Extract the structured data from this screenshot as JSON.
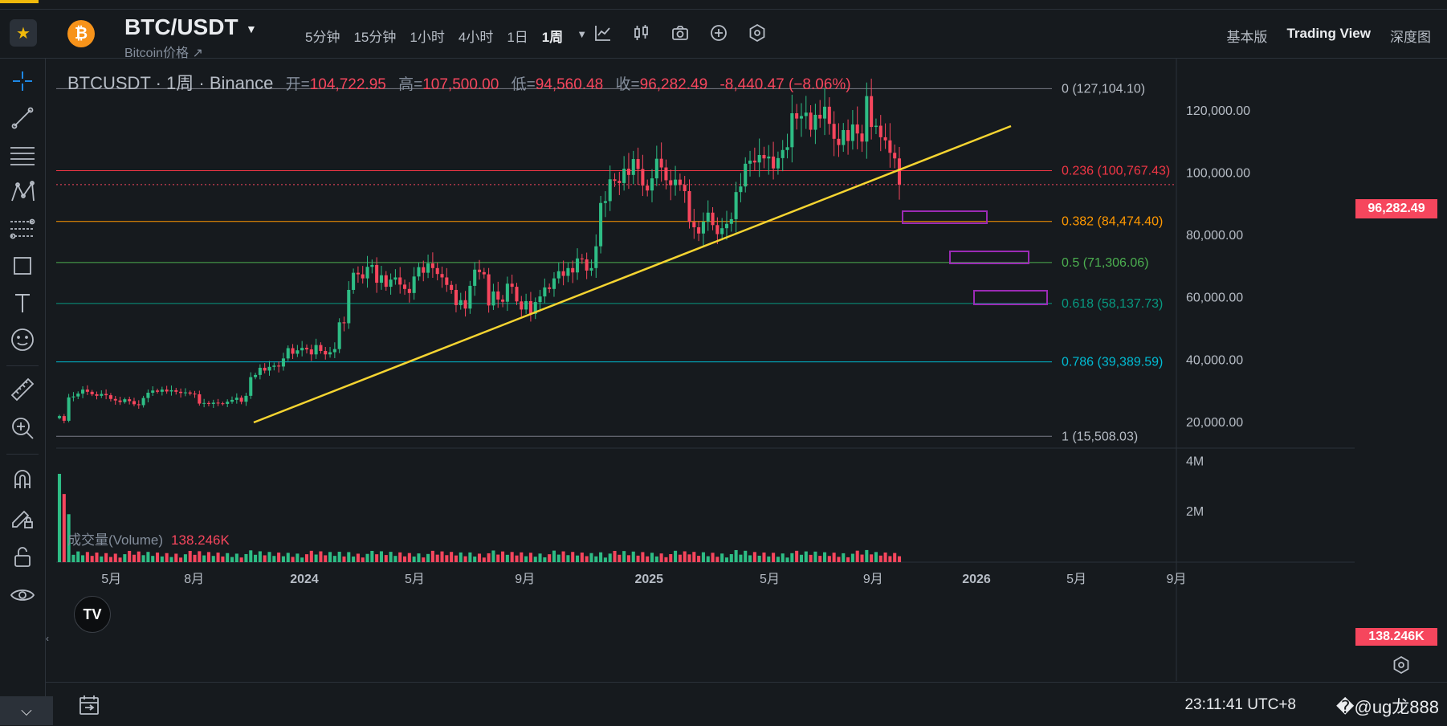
{
  "header": {
    "coin_symbol": "₿",
    "pair": "BTC/USDT",
    "subtitle": "Bitcoin价格 ↗",
    "intervals": [
      "5分钟",
      "15分钟",
      "1小时",
      "4小时",
      "1日",
      "1周"
    ],
    "active_interval": "1周",
    "views": [
      "基本版",
      "Trading View",
      "深度图"
    ],
    "active_view": "Trading View",
    "icons": [
      "chart-line-icon",
      "candles-icon",
      "camera-icon",
      "plus-circle-icon",
      "settings-hex-icon"
    ]
  },
  "legend": {
    "symbol": "BTCUSDT · 1周 · Binance",
    "open_label": "开=",
    "open": "104,722.95",
    "high_label": "高=",
    "high": "107,500.00",
    "low_label": "低=",
    "low": "94,560.48",
    "close_label": "收=",
    "close": "96,282.49",
    "change": "-8,440.47 (−8.06%)"
  },
  "volume_legend": {
    "label": "成交量(Volume)",
    "value": "138.246K"
  },
  "price_tag": "96,282.49",
  "volume_tag": "138.246K",
  "chart_data": {
    "type": "candlestick",
    "price_axis": {
      "ticks": [
        "120,000.00",
        "100,000.00",
        "80,000.00",
        "60,000.00",
        "40,000.00",
        "20,000.00"
      ],
      "values": [
        120000,
        100000,
        80000,
        60000,
        40000,
        20000
      ]
    },
    "volume_axis": {
      "ticks": [
        "4M",
        "2M"
      ],
      "values": [
        4000000,
        2000000
      ]
    },
    "x_ticks": [
      "5月",
      "8月",
      "2024",
      "5月",
      "9月",
      "2025",
      "5月",
      "9月",
      "2026",
      "5月",
      "9月"
    ],
    "fib_levels": [
      {
        "ratio": 0,
        "label": "0 (127,104.10)",
        "price": 127104.1,
        "color": "#787b86"
      },
      {
        "ratio": 0.236,
        "label": "0.236 (100,767.43)",
        "price": 100767.43,
        "color": "#f23645"
      },
      {
        "ratio": 0.382,
        "label": "0.382 (84,474.40)",
        "price": 84474.4,
        "color": "#ff9800"
      },
      {
        "ratio": 0.5,
        "label": "0.5 (71,306.06)",
        "price": 71306.06,
        "color": "#4caf50"
      },
      {
        "ratio": 0.618,
        "label": "0.618 (58,137.73)",
        "price": 58137.73,
        "color": "#089981"
      },
      {
        "ratio": 0.786,
        "label": "0.786 (39,389.59)",
        "price": 39389.59,
        "color": "#00bcd4"
      },
      {
        "ratio": 1,
        "label": "1 (15,508.03)",
        "price": 15508.03,
        "color": "#787b86"
      }
    ],
    "last_price": 96282.49,
    "closes": [
      22000,
      20500,
      28000,
      28300,
      29200,
      30500,
      29800,
      29000,
      28500,
      29100,
      28700,
      27500,
      27000,
      26500,
      27400,
      26800,
      25800,
      25500,
      27800,
      29500,
      30200,
      29800,
      30500,
      29900,
      30300,
      29800,
      29400,
      29600,
      29200,
      29000,
      26000,
      26200,
      25900,
      26300,
      26100,
      25900,
      26600,
      27200,
      27900,
      26600,
      28500,
      34500,
      35200,
      37500,
      36600,
      37800,
      38200,
      37900,
      40500,
      43800,
      42000,
      43100,
      43900,
      43400,
      41800,
      44800,
      42900,
      41800,
      42500,
      43500,
      52100,
      51800,
      62500,
      68000,
      67500,
      66200,
      69900,
      70500,
      64800,
      67200,
      63500,
      65800,
      66500,
      64200,
      62800,
      61500,
      66800,
      69800,
      68000,
      71000,
      69500,
      67600,
      66500,
      64100,
      62500,
      57600,
      59200,
      56500,
      63800,
      69000,
      68200,
      67500,
      57500,
      62000,
      59400,
      58700,
      64500,
      63500,
      58800,
      56200,
      58900,
      54800,
      58600,
      60400,
      63300,
      62800,
      66200,
      68500,
      67000,
      69500,
      68100,
      72600,
      72300,
      68700,
      69500,
      76500,
      90400,
      91000,
      98000,
      97500,
      96800,
      101400,
      99400,
      104500,
      101300,
      96000,
      94400,
      98300,
      104600,
      101800,
      97700,
      96100,
      97900,
      96200,
      94200,
      84300,
      82600,
      80600,
      84400,
      87300,
      83300,
      80400,
      82300,
      83700,
      85200,
      93900,
      95700,
      103000,
      104000,
      103400,
      105800,
      104700,
      105300,
      101500,
      104800,
      107400,
      108300,
      119200,
      117500,
      118300,
      119400,
      113900,
      118700,
      117500,
      121300,
      115800,
      111000,
      109000,
      113800,
      110300,
      115600,
      112700,
      110100,
      124700,
      114800,
      115200,
      111500,
      110500,
      106500,
      104700,
      96282
    ]
  },
  "bottom": {
    "time": "23:11:41 UTC+8",
    "watermark": "�@ug龙888"
  },
  "colors": {
    "up": "#2ebd85",
    "down": "#f6465d",
    "trend": "#f5d431",
    "zone": "#9b2bb5"
  }
}
